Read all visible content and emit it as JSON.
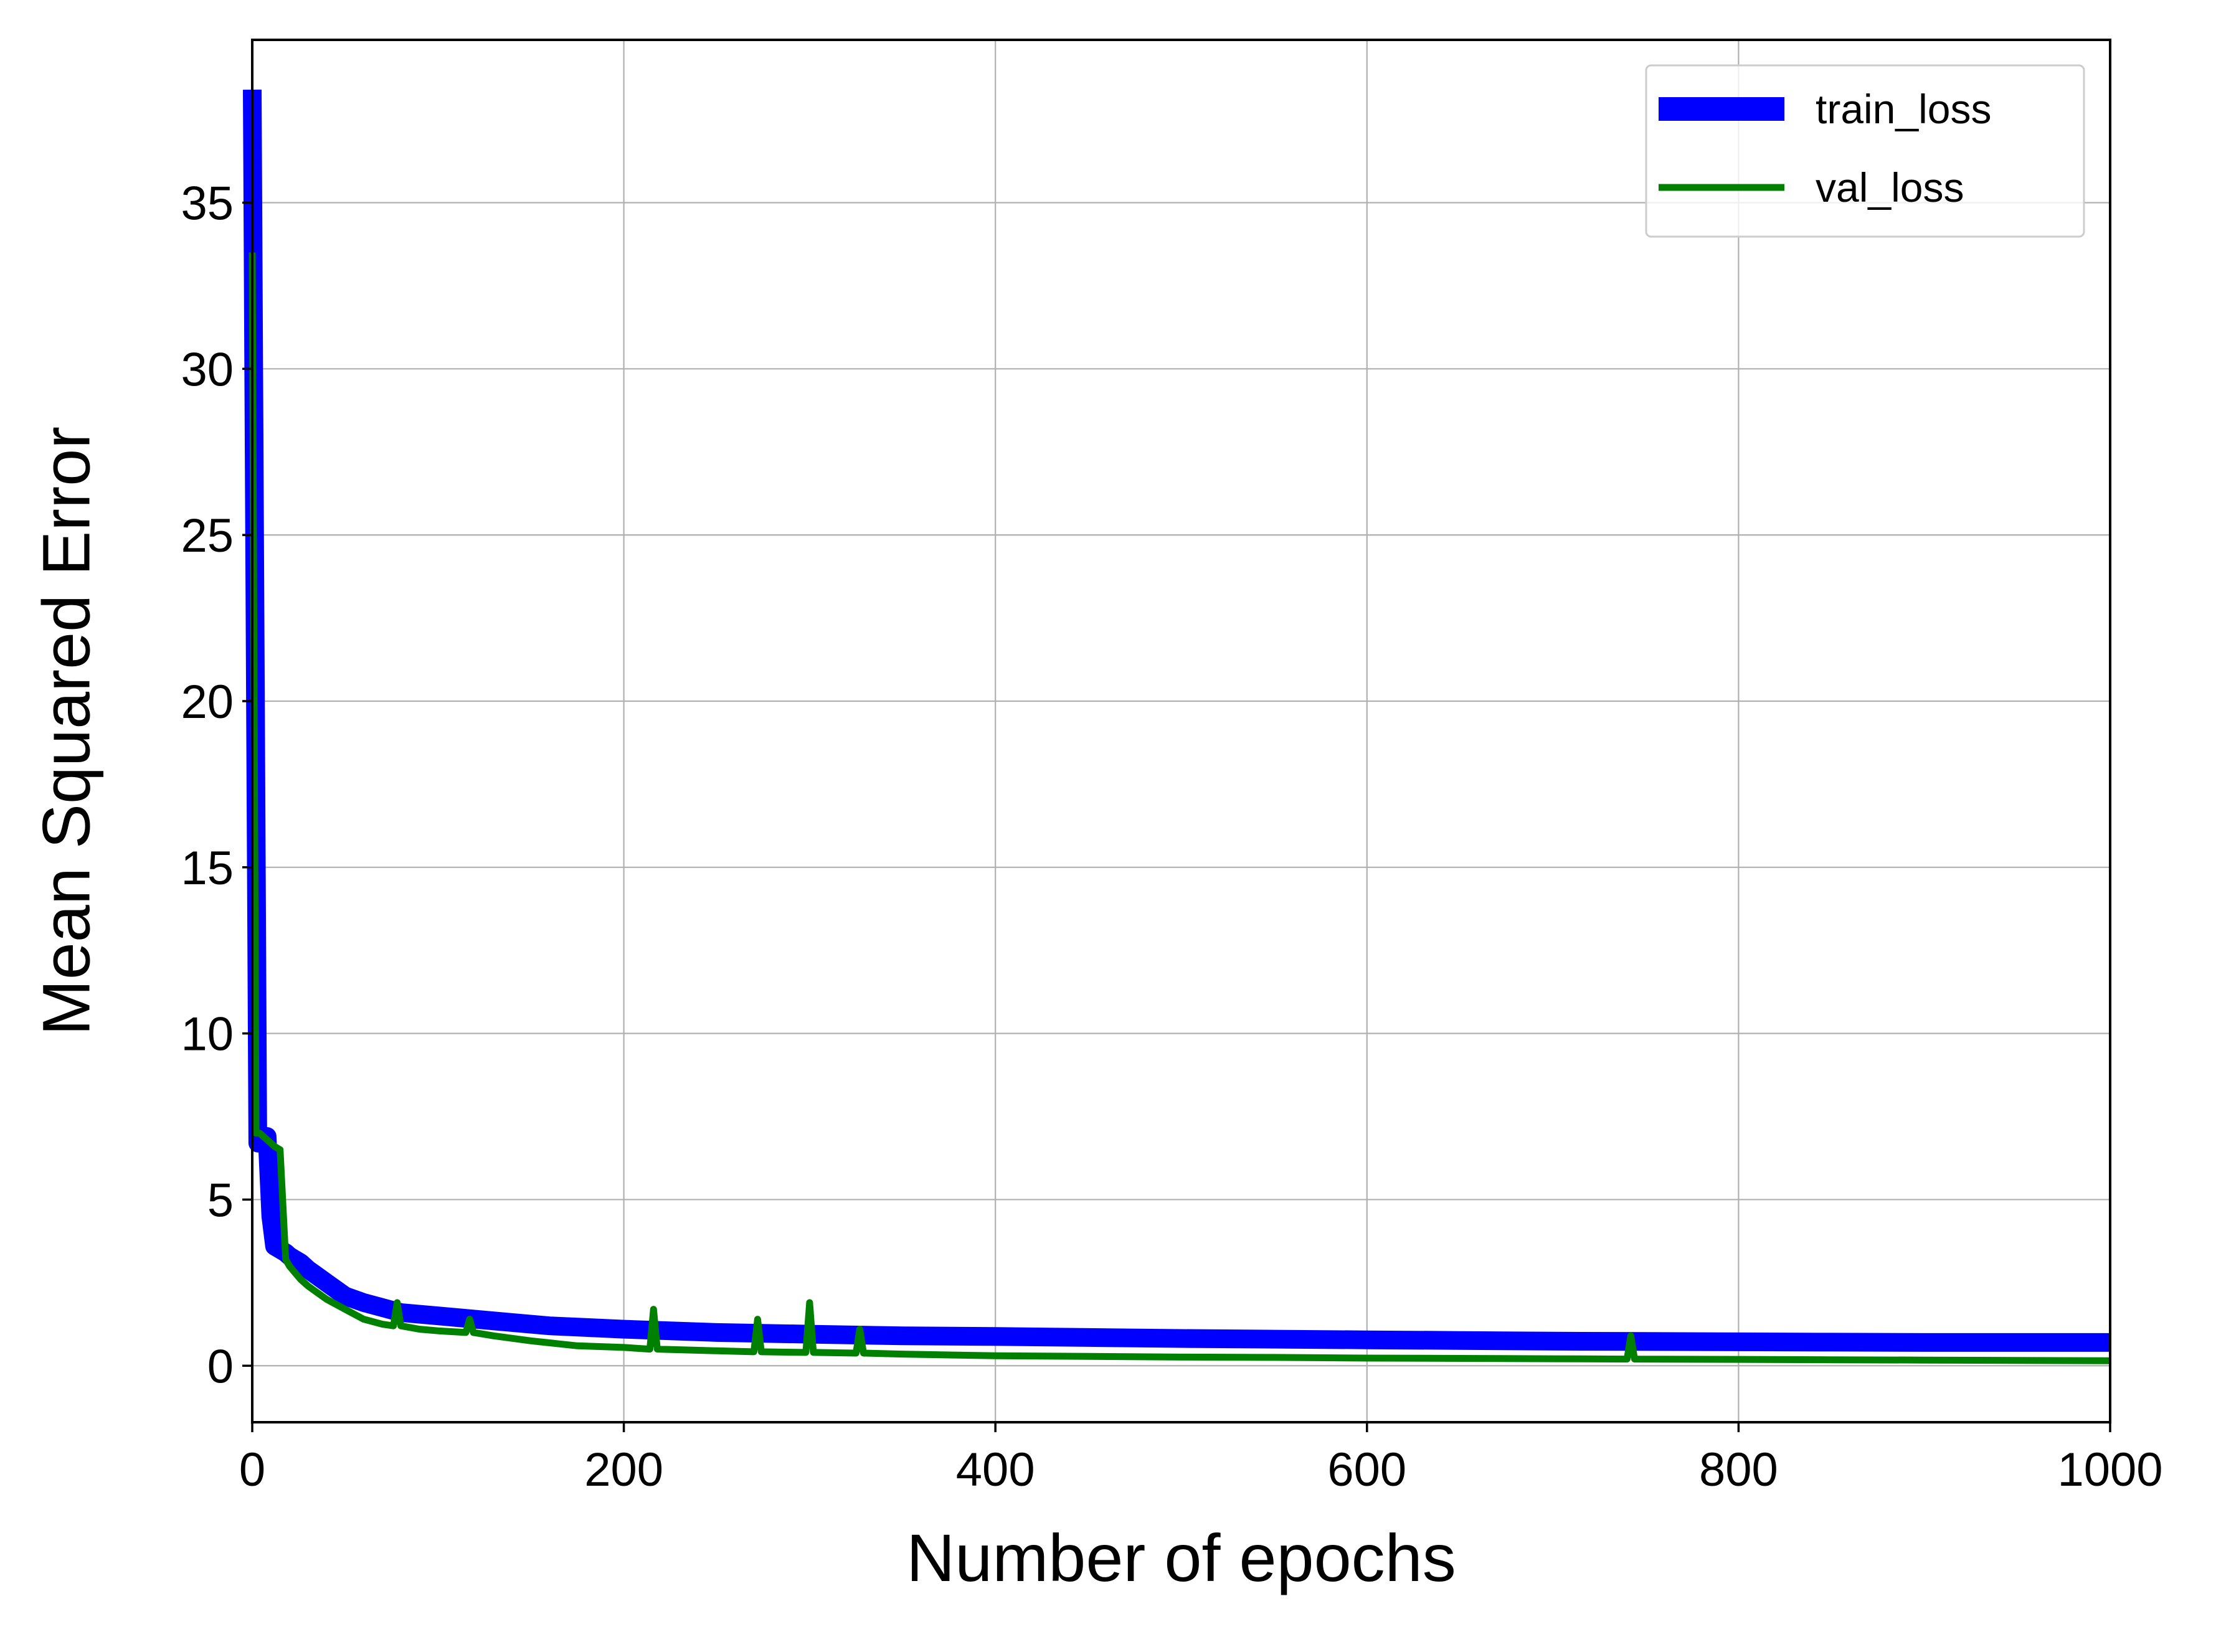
{
  "chart_data": {
    "type": "line",
    "title": "",
    "xlabel": "Number of epochs",
    "ylabel": "Mean Squared Error",
    "xlim": [
      0,
      1000
    ],
    "ylim": [
      -1.7,
      39.9
    ],
    "xticks": [
      0,
      200,
      400,
      600,
      800,
      1000
    ],
    "xtick_labels": [
      "0",
      "200",
      "400",
      "600",
      "800",
      "1000"
    ],
    "yticks": [
      0,
      5,
      10,
      15,
      20,
      25,
      30,
      35
    ],
    "ytick_labels": [
      "0",
      "5",
      "10",
      "15",
      "20",
      "25",
      "30",
      "35"
    ],
    "grid": true,
    "legend_position": "top-right",
    "series": [
      {
        "name": "train_loss",
        "color": "#0000ff",
        "x": [
          0,
          3,
          5,
          8,
          10,
          12,
          15,
          18,
          20,
          23,
          26,
          30,
          35,
          40,
          50,
          60,
          70,
          80,
          90,
          100,
          120,
          140,
          160,
          180,
          200,
          250,
          300,
          350,
          400,
          450,
          500,
          550,
          600,
          650,
          700,
          750,
          800,
          850,
          900,
          950,
          1000
        ],
        "y": [
          38.4,
          6.7,
          6.8,
          6.9,
          4.5,
          3.6,
          3.5,
          3.4,
          3.3,
          3.2,
          3.1,
          2.9,
          2.7,
          2.5,
          2.1,
          1.9,
          1.75,
          1.6,
          1.55,
          1.5,
          1.4,
          1.3,
          1.2,
          1.15,
          1.1,
          1.0,
          0.95,
          0.9,
          0.88,
          0.85,
          0.82,
          0.8,
          0.78,
          0.76,
          0.74,
          0.73,
          0.72,
          0.71,
          0.7,
          0.7,
          0.7
        ]
      },
      {
        "name": "val_loss",
        "color": "#008000",
        "x": [
          0,
          2,
          4,
          6,
          8,
          10,
          12,
          15,
          18,
          20,
          23,
          26,
          30,
          35,
          40,
          50,
          60,
          70,
          76,
          78,
          80,
          90,
          100,
          115,
          117,
          119,
          130,
          150,
          175,
          200,
          214,
          216,
          218,
          250,
          270,
          272,
          274,
          298,
          300,
          302,
          325,
          327,
          329,
          350,
          400,
          450,
          500,
          550,
          600,
          650,
          700,
          740,
          742,
          744,
          800,
          850,
          900,
          950,
          1000
        ],
        "y": [
          33.5,
          7.0,
          7.0,
          6.9,
          6.8,
          6.7,
          6.6,
          6.5,
          3.2,
          3.0,
          2.8,
          2.6,
          2.4,
          2.2,
          2.0,
          1.7,
          1.4,
          1.25,
          1.2,
          1.9,
          1.2,
          1.1,
          1.05,
          1.0,
          1.4,
          1.0,
          0.9,
          0.75,
          0.6,
          0.55,
          0.5,
          1.7,
          0.5,
          0.45,
          0.42,
          1.4,
          0.42,
          0.4,
          1.9,
          0.4,
          0.38,
          1.1,
          0.38,
          0.35,
          0.3,
          0.28,
          0.26,
          0.25,
          0.23,
          0.22,
          0.21,
          0.2,
          0.9,
          0.2,
          0.19,
          0.18,
          0.17,
          0.16,
          0.15
        ]
      }
    ]
  }
}
